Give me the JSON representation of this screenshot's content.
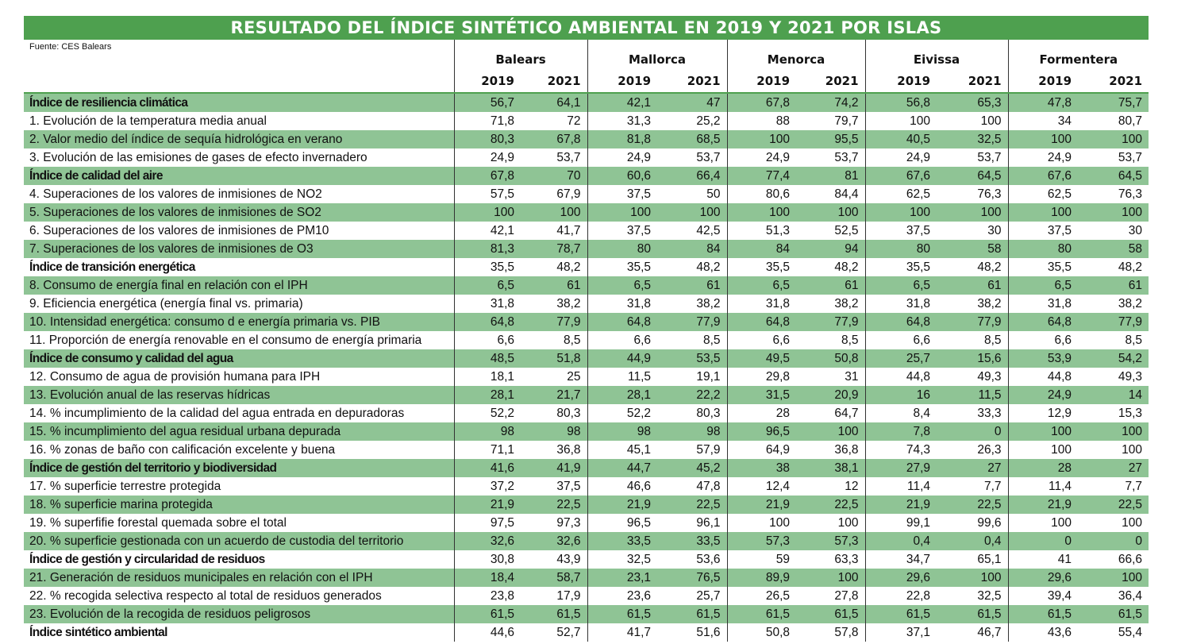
{
  "title": "RESULTADO DEL ÍNDICE SINTÉTICO AMBIENTAL EN 2019 Y 2021 POR ISLAS",
  "source": "Fuente: CES Balears",
  "columns": [
    "Balears",
    "Mallorca",
    "Menorca",
    "Eivissa",
    "Formentera"
  ],
  "years": [
    "2019",
    "2021"
  ],
  "colors": {
    "header_green": "#4ea04f",
    "row_green": "#8fc495"
  },
  "rows": [
    {
      "label": "Índice de resiliencia climática",
      "bold": true,
      "values": [
        "56,7",
        "64,1",
        "42,1",
        "47",
        "67,8",
        "74,2",
        "56,8",
        "65,3",
        "47,8",
        "75,7"
      ]
    },
    {
      "label": "1. Evolución de la temperatura media anual",
      "bold": false,
      "values": [
        "71,8",
        "72",
        "31,3",
        "25,2",
        "88",
        "79,7",
        "100",
        "100",
        "34",
        "80,7"
      ]
    },
    {
      "label": "2. Valor medio del índice de sequía hidrológica en verano",
      "bold": false,
      "values": [
        "80,3",
        "67,8",
        "81,8",
        "68,5",
        "100",
        "95,5",
        "40,5",
        "32,5",
        "100",
        "100"
      ]
    },
    {
      "label": "3. Evolución de las emisiones de gases de efecto invernadero",
      "bold": false,
      "values": [
        "24,9",
        "53,7",
        "24,9",
        "53,7",
        "24,9",
        "53,7",
        "24,9",
        "53,7",
        "24,9",
        "53,7"
      ]
    },
    {
      "label": "Índice de calidad del aire",
      "bold": true,
      "values": [
        "67,8",
        "70",
        "60,6",
        "66,4",
        "77,4",
        "81",
        "67,6",
        "64,5",
        "67,6",
        "64,5"
      ]
    },
    {
      "label": "4. Superaciones de los valores de inmisiones de NO2",
      "bold": false,
      "values": [
        "57,5",
        "67,9",
        "37,5",
        "50",
        "80,6",
        "84,4",
        "62,5",
        "76,3",
        "62,5",
        "76,3"
      ]
    },
    {
      "label": "5. Superaciones de los valores de inmisiones de SO2",
      "bold": false,
      "values": [
        "100",
        "100",
        "100",
        "100",
        "100",
        "100",
        "100",
        "100",
        "100",
        "100"
      ]
    },
    {
      "label": "6. Superaciones de los valores de inmisiones de PM10",
      "bold": false,
      "values": [
        "42,1",
        "41,7",
        "37,5",
        "42,5",
        "51,3",
        "52,5",
        "37,5",
        "30",
        "37,5",
        "30"
      ]
    },
    {
      "label": "7. Superaciones de los valores de inmisiones de O3",
      "bold": false,
      "values": [
        "81,3",
        "78,7",
        "80",
        "84",
        "84",
        "94",
        "80",
        "58",
        "80",
        "58"
      ]
    },
    {
      "label": "Índice de transición energética",
      "bold": true,
      "values": [
        "35,5",
        "48,2",
        "35,5",
        "48,2",
        "35,5",
        "48,2",
        "35,5",
        "48,2",
        "35,5",
        "48,2"
      ]
    },
    {
      "label": "8. Consumo de energía final en relación con el IPH",
      "bold": false,
      "values": [
        "6,5",
        "61",
        "6,5",
        "61",
        "6,5",
        "61",
        "6,5",
        "61",
        "6,5",
        "61"
      ]
    },
    {
      "label": "9. Eficiencia energética (energía final vs. primaria)",
      "bold": false,
      "values": [
        "31,8",
        "38,2",
        "31,8",
        "38,2",
        "31,8",
        "38,2",
        "31,8",
        "38,2",
        "31,8",
        "38,2"
      ]
    },
    {
      "label": "10. Intensidad energética: consumo d e energía primaria vs. PIB",
      "bold": false,
      "values": [
        "64,8",
        "77,9",
        "64,8",
        "77,9",
        "64,8",
        "77,9",
        "64,8",
        "77,9",
        "64,8",
        "77,9"
      ]
    },
    {
      "label": "11. Proporción de energía renovable en el consumo de energía primaria",
      "bold": false,
      "values": [
        "6,6",
        "8,5",
        "6,6",
        "8,5",
        "6,6",
        "8,5",
        "6,6",
        "8,5",
        "6,6",
        "8,5"
      ]
    },
    {
      "label": "Índice de consumo y calidad del agua",
      "bold": true,
      "values": [
        "48,5",
        "51,8",
        "44,9",
        "53,5",
        "49,5",
        "50,8",
        "25,7",
        "15,6",
        "53,9",
        "54,2"
      ]
    },
    {
      "label": "12. Consumo de agua de provisión humana para IPH",
      "bold": false,
      "values": [
        "18,1",
        "25",
        "11,5",
        "19,1",
        "29,8",
        "31",
        "44,8",
        "49,3",
        "44,8",
        "49,3"
      ]
    },
    {
      "label": "13. Evolución anual de las reservas hídricas",
      "bold": false,
      "values": [
        "28,1",
        "21,7",
        "28,1",
        "22,2",
        "31,5",
        "20,9",
        "16",
        "11,5",
        "24,9",
        "14"
      ]
    },
    {
      "label": "14. % incumplimiento de la calidad del agua entrada en depuradoras",
      "bold": false,
      "values": [
        "52,2",
        "80,3",
        "52,2",
        "80,3",
        "28",
        "64,7",
        "8,4",
        "33,3",
        "12,9",
        "15,3"
      ]
    },
    {
      "label": "15. % incumplimiento del agua residual urbana depurada",
      "bold": false,
      "values": [
        "98",
        "98",
        "98",
        "98",
        "96,5",
        "100",
        "7,8",
        "0",
        "100",
        "100"
      ]
    },
    {
      "label": "16. % zonas de baño con calificación excelente y buena",
      "bold": false,
      "values": [
        "71,1",
        "36,8",
        "45,1",
        "57,9",
        "64,9",
        "36,8",
        "74,3",
        "26,3",
        "100",
        "100"
      ]
    },
    {
      "label": "Índice de gestión del territorio y biodiversidad",
      "bold": true,
      "values": [
        "41,6",
        "41,9",
        "44,7",
        "45,2",
        "38",
        "38,1",
        "27,9",
        "27",
        "28",
        "27"
      ]
    },
    {
      "label": "17. % superficie terrestre protegida",
      "bold": false,
      "values": [
        "37,2",
        "37,5",
        "46,6",
        "47,8",
        "12,4",
        "12",
        "11,4",
        "7,7",
        "11,4",
        "7,7"
      ]
    },
    {
      "label": "18. % superficie marina protegida",
      "bold": false,
      "values": [
        "21,9",
        "22,5",
        "21,9",
        "22,5",
        "21,9",
        "22,5",
        "21,9",
        "22,5",
        "21,9",
        "22,5"
      ]
    },
    {
      "label": "19. % superfifie forestal quemada sobre el total",
      "bold": false,
      "values": [
        "97,5",
        "97,3",
        "96,5",
        "96,1",
        "100",
        "100",
        "99,1",
        "99,6",
        "100",
        "100"
      ]
    },
    {
      "label": "20. % superficie gestionada con un acuerdo de custodia del territorio",
      "bold": false,
      "values": [
        "32,6",
        "32,6",
        "33,5",
        "33,5",
        "57,3",
        "57,3",
        "0,4",
        "0,4",
        "0",
        "0"
      ]
    },
    {
      "label": "Índice de gestión y circularidad de residuos",
      "bold": true,
      "values": [
        "30,8",
        "43,9",
        "32,5",
        "53,6",
        "59",
        "63,3",
        "34,7",
        "65,1",
        "41",
        "66,6"
      ]
    },
    {
      "label": "21. Generación de residuos municipales en relación con el IPH",
      "bold": false,
      "values": [
        "18,4",
        "58,7",
        "23,1",
        "76,5",
        "89,9",
        "100",
        "29,6",
        "100",
        "29,6",
        "100"
      ]
    },
    {
      "label": "22. % recogida selectiva respecto al total de residuos generados",
      "bold": false,
      "values": [
        "23,8",
        "17,9",
        "23,6",
        "25,7",
        "26,5",
        "27,8",
        "22,8",
        "32,5",
        "39,4",
        "36,4"
      ]
    },
    {
      "label": "23. Evolución de la recogida de residuos peligrosos",
      "bold": false,
      "values": [
        "61,5",
        "61,5",
        "61,5",
        "61,5",
        "61,5",
        "61,5",
        "61,5",
        "61,5",
        "61,5",
        "61,5"
      ]
    },
    {
      "label": "Índice sintético ambiental",
      "bold": true,
      "values": [
        "44,6",
        "52,7",
        "41,7",
        "51,6",
        "50,8",
        "57,8",
        "37,1",
        "46,7",
        "43,6",
        "55,4"
      ]
    }
  ]
}
